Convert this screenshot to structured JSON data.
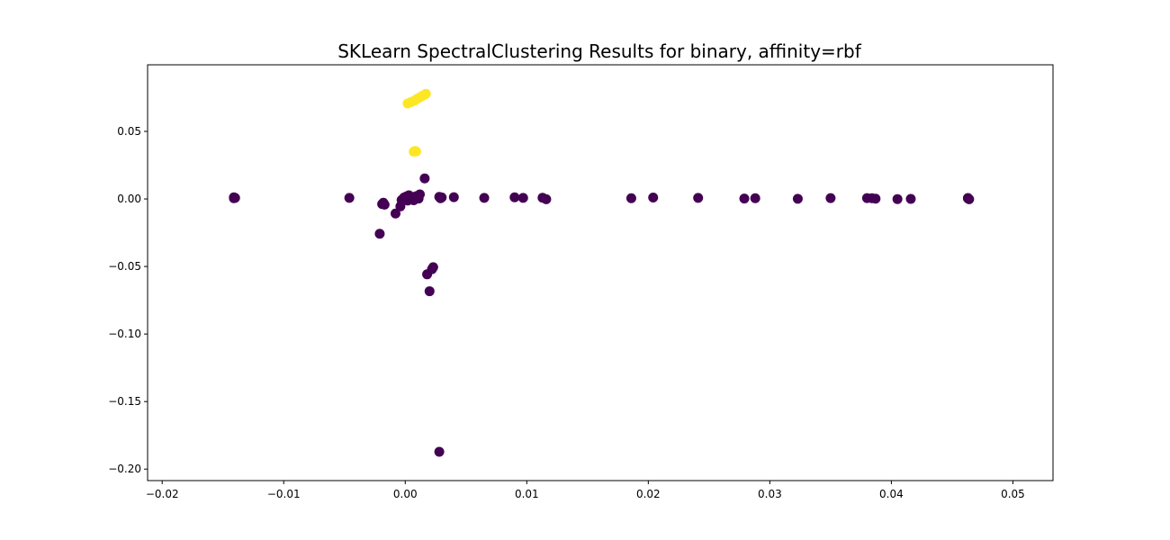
{
  "chart_data": {
    "type": "scatter",
    "title": "SKLearn SpectralClustering Results for binary, affinity=rbf",
    "xlabel": "",
    "ylabel": "",
    "xlim": [
      -0.0212,
      0.0533
    ],
    "ylim": [
      -0.2085,
      0.0993
    ],
    "x_ticks": [
      -0.02,
      -0.01,
      0.0,
      0.01,
      0.02,
      0.03,
      0.04,
      0.05
    ],
    "x_tick_labels": [
      "−0.02",
      "−0.01",
      "0.00",
      "0.01",
      "0.02",
      "0.03",
      "0.04",
      "0.05"
    ],
    "y_ticks": [
      -0.2,
      -0.15,
      -0.1,
      -0.05,
      0.0,
      0.05
    ],
    "y_tick_labels": [
      "−0.20",
      "−0.15",
      "−0.10",
      "−0.05",
      "0.00",
      "0.05"
    ],
    "grid": false,
    "legend": "none",
    "colors": {
      "cluster_0": "#440154",
      "cluster_1": "#fde725"
    },
    "series": [
      {
        "cluster": 0,
        "color": "#440154",
        "points": [
          [
            -0.0141,
            0.0012
          ],
          [
            -0.014,
            0.0008
          ],
          [
            -0.0141,
            0.0005
          ],
          [
            -0.0046,
            0.0008
          ],
          [
            -0.0019,
            -0.0038
          ],
          [
            -0.0018,
            -0.0028
          ],
          [
            -0.0017,
            -0.0042
          ],
          [
            -0.0021,
            -0.0258
          ],
          [
            -0.0008,
            -0.0108
          ],
          [
            -0.0004,
            -0.0055
          ],
          [
            -0.0003,
            -0.0008
          ],
          [
            -0.0001,
            0.001
          ],
          [
            0.0001,
            0.0019
          ],
          [
            0.0002,
            -0.0012
          ],
          [
            0.0003,
            0.0027
          ],
          [
            0.0004,
            0.0004
          ],
          [
            0.0006,
            0.0014
          ],
          [
            0.0007,
            -0.001
          ],
          [
            0.0009,
            0.002
          ],
          [
            0.0011,
            0.0003
          ],
          [
            0.0012,
            0.0034
          ],
          [
            0.0016,
            0.0152
          ],
          [
            0.0018,
            -0.0558
          ],
          [
            0.002,
            -0.0683
          ],
          [
            0.0022,
            -0.052
          ],
          [
            0.0023,
            -0.0505
          ],
          [
            0.0028,
            0.0015
          ],
          [
            0.0029,
            0.0005
          ],
          [
            0.003,
            0.0011
          ],
          [
            0.0028,
            -0.1872
          ],
          [
            0.004,
            0.0013
          ],
          [
            0.0065,
            0.0008
          ],
          [
            0.009,
            0.0012
          ],
          [
            0.0097,
            0.0008
          ],
          [
            0.0113,
            0.0009
          ],
          [
            0.0116,
            -0.0002
          ],
          [
            0.0186,
            0.0005
          ],
          [
            0.0204,
            0.001
          ],
          [
            0.0241,
            0.0008
          ],
          [
            0.0279,
            0.0003
          ],
          [
            0.0288,
            0.0005
          ],
          [
            0.0323,
            0.0001
          ],
          [
            0.035,
            0.0006
          ],
          [
            0.038,
            0.0006
          ],
          [
            0.0384,
            0.0005
          ],
          [
            0.0387,
            0.0002
          ],
          [
            0.0405,
            -0.0001
          ],
          [
            0.0416,
            0.0
          ],
          [
            0.0463,
            0.0004
          ],
          [
            0.0464,
            -0.0002
          ],
          [
            0.0463,
            0.0007
          ]
        ]
      },
      {
        "cluster": 1,
        "color": "#fde725",
        "points": [
          [
            0.0002,
            0.0707
          ],
          [
            0.0005,
            0.0718
          ],
          [
            0.0008,
            0.073
          ],
          [
            0.001,
            0.0742
          ],
          [
            0.0012,
            0.0752
          ],
          [
            0.0014,
            0.0763
          ],
          [
            0.0016,
            0.0772
          ],
          [
            0.0017,
            0.0778
          ],
          [
            0.0007,
            0.035
          ],
          [
            0.0009,
            0.0352
          ],
          [
            0.0008,
            0.0355
          ]
        ]
      }
    ]
  }
}
